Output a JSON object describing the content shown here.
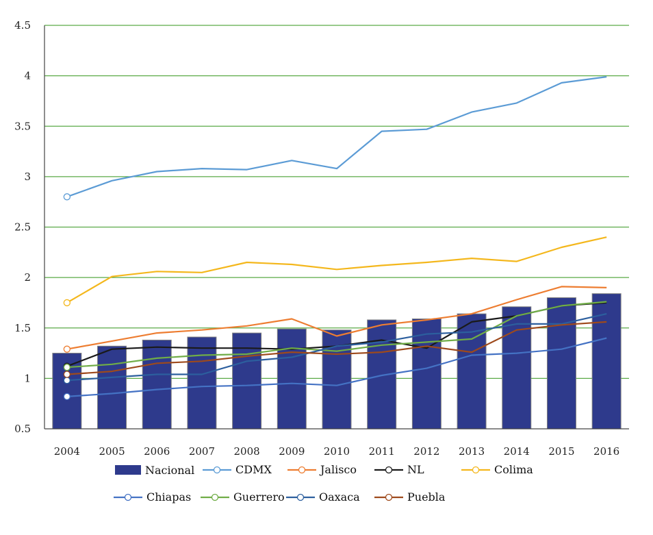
{
  "chart_data": {
    "type": "bar",
    "categories": [
      "2004",
      "2005",
      "2006",
      "2007",
      "2008",
      "2009",
      "2010",
      "2011",
      "2012",
      "2013",
      "2014",
      "2015",
      "2016"
    ],
    "ylim": [
      0.5,
      4.5
    ],
    "yticks": [
      "0.5",
      "1",
      "1.5",
      "2",
      "2.5",
      "3",
      "3.5",
      "4",
      "4.5"
    ],
    "ytick_values": [
      0.5,
      1,
      1.5,
      2,
      2.5,
      3,
      3.5,
      4,
      4.5
    ],
    "grid": true,
    "legend_position": "bottom",
    "bars": {
      "name": "Nacional",
      "color": "#2e3a8c",
      "values": [
        1.25,
        1.32,
        1.38,
        1.41,
        1.45,
        1.49,
        1.48,
        1.58,
        1.59,
        1.64,
        1.71,
        1.8,
        1.84
      ]
    },
    "series": [
      {
        "name": "CDMX",
        "color": "#5b9bd5",
        "values": [
          2.8,
          2.96,
          3.05,
          3.08,
          3.07,
          3.16,
          3.08,
          3.45,
          3.47,
          3.64,
          3.73,
          3.93,
          3.99
        ]
      },
      {
        "name": "Jalisco",
        "color": "#ed7d31",
        "values": [
          1.29,
          1.37,
          1.45,
          1.48,
          1.52,
          1.59,
          1.42,
          1.53,
          1.58,
          1.64,
          1.78,
          1.91,
          1.9
        ]
      },
      {
        "name": "NL",
        "color": "#1a1a1a",
        "values": [
          1.12,
          1.29,
          1.31,
          1.3,
          1.3,
          1.29,
          1.32,
          1.38,
          1.3,
          1.56,
          1.62,
          1.72,
          1.75
        ]
      },
      {
        "name": "Colima",
        "color": "#f4b71c",
        "values": [
          1.75,
          2.01,
          2.06,
          2.05,
          2.15,
          2.13,
          2.08,
          2.12,
          2.15,
          2.19,
          2.16,
          2.3,
          2.4
        ]
      },
      {
        "name": "Chiapas",
        "color": "#4472c4",
        "values": [
          0.82,
          0.85,
          0.89,
          0.92,
          0.93,
          0.95,
          0.93,
          1.03,
          1.1,
          1.23,
          1.25,
          1.29,
          1.4
        ]
      },
      {
        "name": "Guerrero",
        "color": "#70ad47",
        "values": [
          1.11,
          1.14,
          1.2,
          1.23,
          1.24,
          1.3,
          1.27,
          1.33,
          1.36,
          1.39,
          1.62,
          1.72,
          1.76
        ]
      },
      {
        "name": "Oaxaca",
        "color": "#2c5f9e",
        "values": [
          0.98,
          1.01,
          1.04,
          1.04,
          1.17,
          1.21,
          1.32,
          1.36,
          1.44,
          1.46,
          1.54,
          1.54,
          1.64
        ]
      },
      {
        "name": "Puebla",
        "color": "#9e4a1c",
        "values": [
          1.04,
          1.07,
          1.15,
          1.17,
          1.22,
          1.26,
          1.24,
          1.26,
          1.32,
          1.26,
          1.48,
          1.53,
          1.56
        ]
      }
    ],
    "grid_color": "#5aaa46",
    "axis_color": "#444444"
  }
}
